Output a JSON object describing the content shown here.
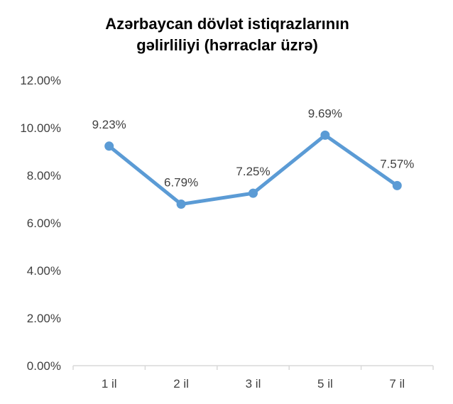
{
  "chart_data": {
    "type": "line",
    "title_lines": [
      "Azərbaycan dövlət istiqrazlarının",
      "gəlirliliyi (hərraclar üzrə)"
    ],
    "xlabel": "",
    "ylabel": "",
    "categories": [
      "1 il",
      "2 il",
      "3 il",
      "5 il",
      "7 il"
    ],
    "series": [
      {
        "values": [
          9.23,
          6.79,
          7.25,
          9.69,
          7.57
        ],
        "labels": [
          "9.23%",
          "6.79%",
          "7.25%",
          "9.69%",
          "7.57%"
        ],
        "color": "#5B9BD5"
      }
    ],
    "ylim": [
      0,
      12
    ],
    "yticks": [
      0,
      2,
      4,
      6,
      8,
      10,
      12
    ],
    "ytick_labels": [
      "0.00%",
      "2.00%",
      "4.00%",
      "6.00%",
      "8.00%",
      "10.00%",
      "12.00%"
    ],
    "grid": false,
    "legend": "none",
    "axis_color": "#D9D9D9",
    "text_color": "#404040"
  }
}
